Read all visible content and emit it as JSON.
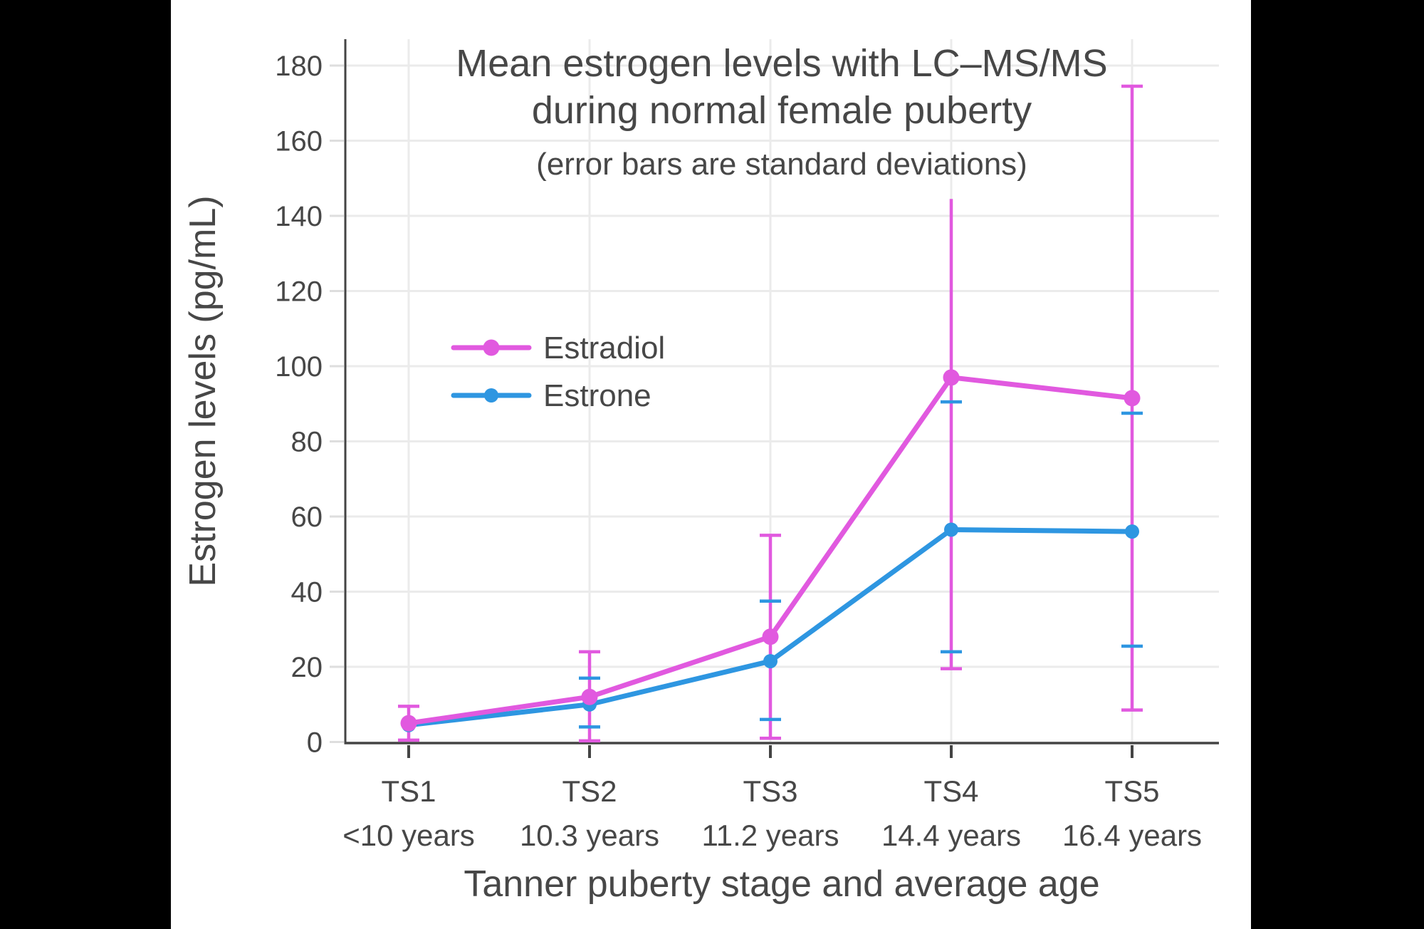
{
  "page_background": "#000000",
  "panel_background": "#ffffff",
  "chart_data": {
    "type": "line",
    "title_line1": "Mean estrogen levels with LC–MS/MS",
    "title_line2": "during normal female puberty",
    "subtitle": "(error bars are standard deviations)",
    "xlabel": "Tanner puberty stage and average age",
    "ylabel": "Estrogen levels (pg/mL)",
    "categories": [
      "TS1",
      "TS2",
      "TS3",
      "TS4",
      "TS5"
    ],
    "category_ages": [
      "<10 years",
      "10.3 years",
      "11.2 years",
      "14.4 years",
      "16.4 years"
    ],
    "yticks": [
      0,
      20,
      40,
      60,
      80,
      100,
      120,
      140,
      160,
      180
    ],
    "ylim": [
      0,
      187
    ],
    "grid": true,
    "legend_position": "inside-upper-left",
    "error_bars": "standard deviations",
    "series": [
      {
        "name": "Estradiol",
        "color": "#E159DF",
        "marker_radius": 11.5,
        "values": [
          5,
          12,
          28,
          97,
          91.5
        ],
        "error_low": [
          0.5,
          0.3,
          1,
          19.5,
          8.5
        ],
        "error_high": [
          9.5,
          24,
          55,
          144.5,
          174.5
        ],
        "error_high_cap": [
          true,
          true,
          true,
          false,
          true
        ],
        "error_low_cap": [
          true,
          true,
          true,
          true,
          true
        ]
      },
      {
        "name": "Estrone",
        "color": "#2E96E1",
        "marker_radius": 10,
        "values": [
          4.5,
          10,
          21.5,
          56.5,
          56
        ],
        "error_low": [
          null,
          4,
          6,
          24,
          25.5
        ],
        "error_high": [
          null,
          17,
          37.5,
          90.5,
          87.5
        ]
      }
    ],
    "colors": {
      "axis": "#444444",
      "text": "#474747",
      "grid": "#ebebeb",
      "y_tick_mark": "#dedede",
      "x_tick_mark": "#444444"
    }
  }
}
